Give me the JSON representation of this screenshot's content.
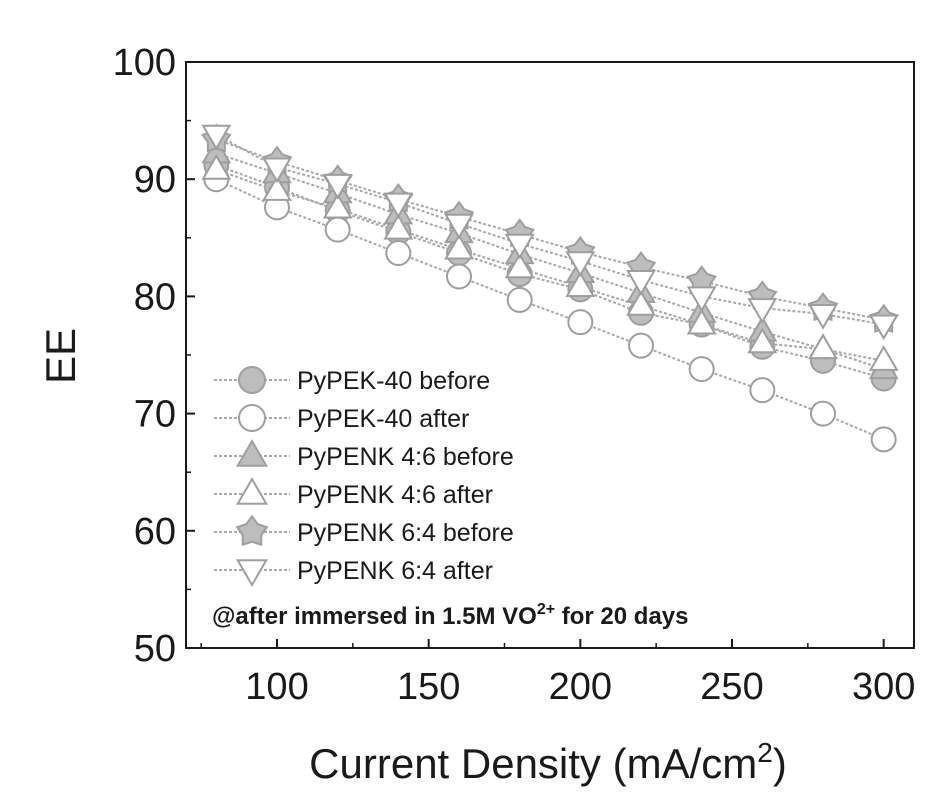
{
  "chart_data": {
    "type": "line",
    "xlabel": "Current Density (mA/cm",
    "xlabel_sup": "2",
    "xlabel_end": ")",
    "ylabel": "EE",
    "xlim": [
      70,
      310
    ],
    "ylim": [
      50,
      100
    ],
    "xticks": [
      100,
      150,
      200,
      250,
      300
    ],
    "yticks": [
      50,
      60,
      70,
      80,
      90,
      100
    ],
    "grid": false,
    "legend_position": "bottom-left",
    "annotation": {
      "prefix": "@after immersed in 1.5M VO",
      "sup": "2+",
      "suffix": " for 20 days"
    },
    "colors": {
      "marker_fill": "#bdbdbd",
      "marker_stroke": "#9e9e9e",
      "line": "#a8a8a8",
      "open_fill": "#ffffff",
      "axis": "#1a1a1a"
    },
    "series": [
      {
        "name": "PyPEK-40 before",
        "marker": "circle-filled",
        "x": [
          80,
          100,
          120,
          140,
          160,
          180,
          200,
          220,
          240,
          260,
          280,
          300
        ],
        "y": [
          91.2,
          89.3,
          87.3,
          85.5,
          83.7,
          81.9,
          80.6,
          78.6,
          77.6,
          75.7,
          74.5,
          73.0
        ]
      },
      {
        "name": "PyPEK-40 after",
        "marker": "circle-open",
        "x": [
          80,
          100,
          120,
          140,
          160,
          180,
          200,
          220,
          240,
          260,
          280,
          300
        ],
        "y": [
          90.0,
          87.6,
          85.7,
          83.7,
          81.7,
          79.7,
          77.8,
          75.8,
          73.8,
          72.0,
          70.0,
          67.8
        ]
      },
      {
        "name": "PyPENK 4:6 before",
        "marker": "triangle-up-filled",
        "x": [
          80,
          100,
          120,
          140,
          160,
          180,
          200,
          220,
          240,
          260,
          280,
          300
        ],
        "y": [
          92.2,
          90.5,
          88.8,
          87.0,
          85.4,
          83.6,
          82.0,
          80.3,
          78.6,
          77.0,
          75.5,
          73.8
        ]
      },
      {
        "name": "PyPENK 4:6 after",
        "marker": "triangle-up-open",
        "x": [
          80,
          100,
          120,
          140,
          160,
          180,
          200,
          220,
          240,
          260,
          280,
          300
        ],
        "y": [
          90.8,
          89.0,
          87.5,
          85.7,
          84.0,
          82.4,
          80.8,
          79.2,
          77.6,
          76.0,
          75.5,
          74.5
        ]
      },
      {
        "name": "PyPENK 6:4 before",
        "marker": "star-filled",
        "x": [
          80,
          100,
          120,
          140,
          160,
          180,
          200,
          220,
          240,
          260,
          280,
          300
        ],
        "y": [
          93.4,
          91.5,
          89.9,
          88.3,
          86.8,
          85.3,
          83.8,
          82.5,
          81.3,
          80.0,
          79.0,
          78.0
        ]
      },
      {
        "name": "PyPENK 6:4 after",
        "marker": "triangle-down-open",
        "x": [
          80,
          100,
          120,
          140,
          160,
          180,
          200,
          220,
          240,
          260,
          280,
          300
        ],
        "y": [
          93.8,
          91.0,
          89.6,
          88.0,
          86.2,
          84.5,
          83.0,
          81.4,
          80.0,
          79.0,
          78.5,
          77.6
        ]
      }
    ]
  }
}
